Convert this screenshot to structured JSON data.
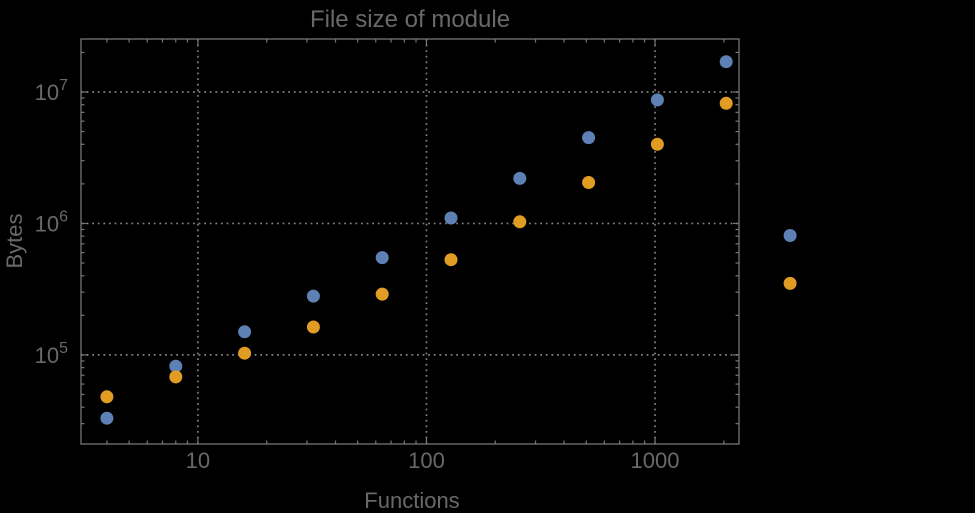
{
  "colors": {
    "background": "#000000",
    "text": "#696969",
    "frame": "#767676",
    "grid": "#969696",
    "series_blue": "#5E81B5",
    "series_orange": "#E19C24"
  },
  "chart_data": {
    "type": "scatter",
    "title": "File size of module",
    "xlabel": "Functions",
    "ylabel": "Bytes",
    "x_scale": "log",
    "y_scale": "log",
    "xlim": [
      3.08,
      2330
    ],
    "ylim": [
      21000,
      25300000
    ],
    "grid": {
      "style": "dotted",
      "x_values": [
        10,
        100,
        1000
      ],
      "y_values": [
        100000,
        1000000,
        10000000
      ]
    },
    "x_ticks": {
      "values": [
        10,
        100,
        1000
      ],
      "labels": [
        "10",
        "100",
        "1000"
      ]
    },
    "y_ticks": {
      "values": [
        100000,
        1000000,
        10000000
      ],
      "label_base": "10",
      "exponents": [
        "5",
        "6",
        "7"
      ]
    },
    "legend": "none",
    "series": [
      {
        "name": "series-1-blue",
        "color": "#5E81B5",
        "x": [
          4,
          8,
          16,
          32,
          64,
          128,
          256,
          512,
          1024,
          2048,
          3900
        ],
        "y": [
          33000,
          82000,
          150000,
          280000,
          550000,
          1100000,
          2200000,
          4500000,
          8700000,
          17000000,
          810000
        ]
      },
      {
        "name": "series-2-orange",
        "color": "#E19C24",
        "x": [
          4,
          8,
          16,
          32,
          64,
          128,
          256,
          512,
          1024,
          2048,
          3900
        ],
        "y": [
          48000,
          68000,
          103000,
          163000,
          290000,
          530000,
          1030000,
          2050000,
          4000000,
          8200000,
          350000
        ]
      }
    ]
  }
}
